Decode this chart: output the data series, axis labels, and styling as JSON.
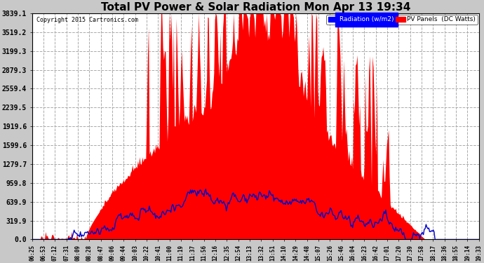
{
  "title": "Total PV Power & Solar Radiation Mon Apr 13 19:34",
  "copyright": "Copyright 2015 Cartronics.com",
  "legend_radiation": "Radiation (w/m2)",
  "legend_pv": "PV Panels  (DC Watts)",
  "y_max": 3839.1,
  "y_ticks": [
    0.0,
    319.9,
    639.9,
    959.8,
    1279.7,
    1599.6,
    1919.6,
    2239.5,
    2559.4,
    2879.3,
    3199.3,
    3519.2,
    3839.1
  ],
  "x_labels": [
    "06:25",
    "06:53",
    "07:12",
    "07:31",
    "08:09",
    "08:28",
    "08:47",
    "09:06",
    "09:44",
    "10:03",
    "10:22",
    "10:41",
    "11:00",
    "11:19",
    "11:37",
    "11:56",
    "12:16",
    "12:35",
    "12:54",
    "13:13",
    "13:32",
    "13:51",
    "14:10",
    "14:29",
    "14:48",
    "15:07",
    "15:26",
    "15:46",
    "16:04",
    "16:23",
    "16:42",
    "17:01",
    "17:20",
    "17:39",
    "17:58",
    "18:17",
    "18:36",
    "18:55",
    "19:14",
    "19:33"
  ],
  "figure_bg": "#c8c8c8",
  "plot_bg": "#ffffff",
  "grid_color": "#aaaaaa",
  "title_color": "#000000",
  "radiation_color": "#0000cc",
  "pv_fill_color": "#ff0000"
}
